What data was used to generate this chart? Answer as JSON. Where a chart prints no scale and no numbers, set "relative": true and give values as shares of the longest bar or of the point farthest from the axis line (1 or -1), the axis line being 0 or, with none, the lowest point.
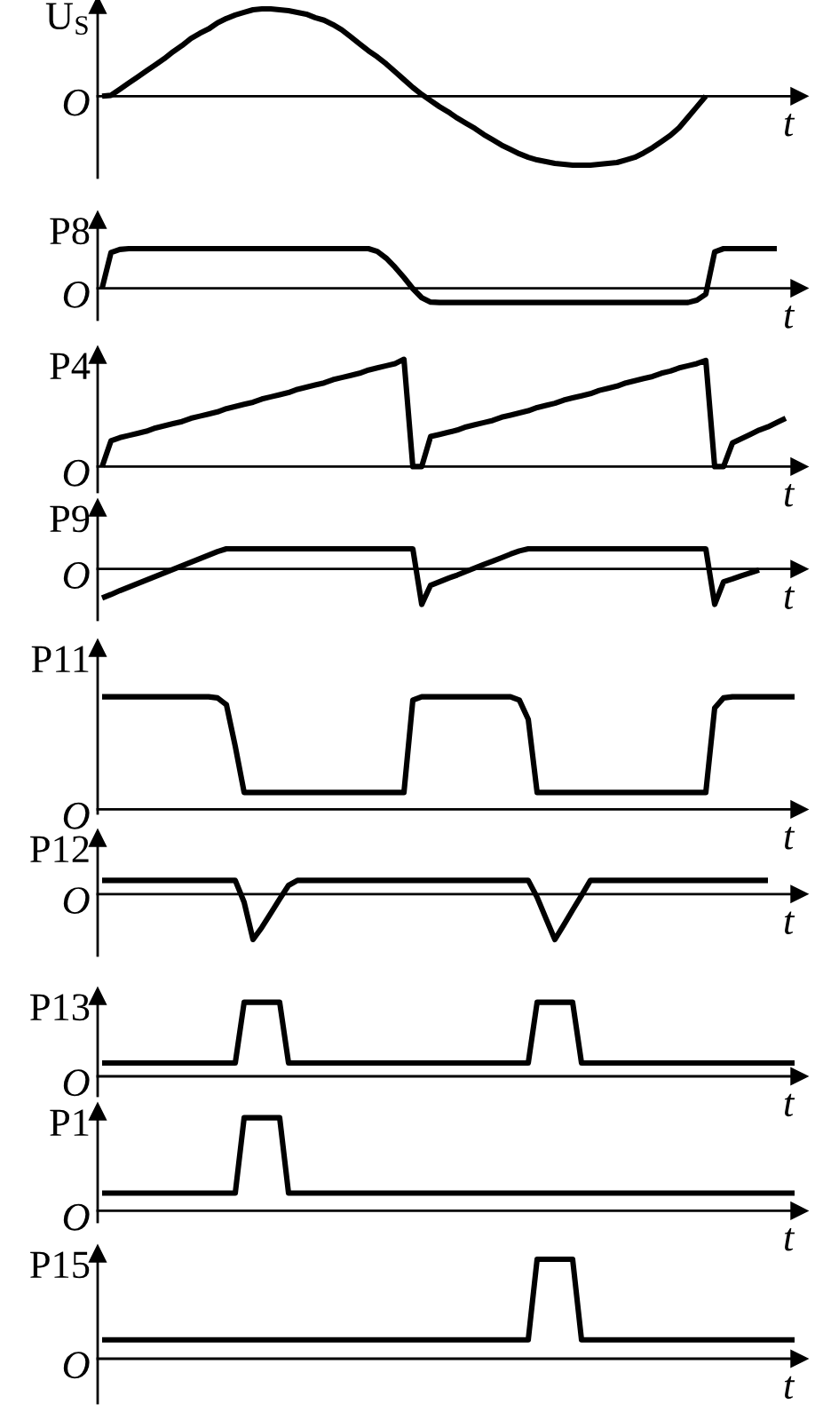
{
  "chart_data": [
    {
      "type": "line",
      "ylabel": "U$_{S}$",
      "xlabel": "t",
      "annotations": [
        "O"
      ],
      "relative": true,
      "color": "#000000",
      "categories": [
        null,
        null,
        null,
        null,
        null,
        null,
        null,
        null,
        null,
        null,
        null,
        null,
        null,
        null,
        null,
        null,
        null,
        null,
        null,
        null,
        null,
        null,
        null,
        null,
        null,
        null,
        null,
        null,
        null,
        null,
        null,
        null,
        null,
        null,
        null,
        null,
        null,
        null,
        null,
        null,
        null,
        null,
        null,
        null,
        null,
        null,
        null,
        null,
        null,
        null,
        null,
        null,
        null,
        null,
        null,
        null,
        null,
        null,
        null,
        null,
        null,
        null,
        null,
        null,
        null,
        null,
        null,
        null,
        null,
        null,
        null,
        null,
        null,
        null,
        null,
        null,
        null,
        null,
        null
      ],
      "values": [
        0,
        0.01,
        0.08,
        0.15,
        0.22,
        0.29,
        0.36,
        0.43,
        0.51,
        0.58,
        0.66,
        0.72,
        0.77,
        0.84,
        0.89,
        0.93,
        0.96,
        0.99,
        1.0,
        1.0,
        0.99,
        0.98,
        0.96,
        0.94,
        0.9,
        0.87,
        0.82,
        0.76,
        0.68,
        0.6,
        0.52,
        0.45,
        0.37,
        0.28,
        0.19,
        0.1,
        0.02,
        -0.05,
        -0.12,
        -0.18,
        -0.25,
        -0.31,
        -0.37,
        -0.44,
        -0.5,
        -0.56,
        -0.61,
        -0.66,
        -0.7,
        -0.73,
        -0.75,
        -0.77,
        -0.78,
        -0.79,
        -0.79,
        -0.79,
        -0.78,
        -0.77,
        -0.76,
        -0.73,
        -0.7,
        -0.65,
        -0.59,
        -0.52,
        -0.45,
        -0.36,
        -0.24,
        -0.12,
        0,
        null,
        null,
        null,
        null,
        null,
        null,
        null,
        null,
        null,
        null
      ]
    },
    {
      "type": "line",
      "ylabel": "P8",
      "xlabel": "t",
      "annotations": [
        "O"
      ],
      "relative": true,
      "color": "#000000",
      "categories": [
        null,
        null,
        null,
        null,
        null,
        null,
        null,
        null,
        null,
        null,
        null,
        null,
        null,
        null,
        null,
        null,
        null,
        null,
        null,
        null,
        null,
        null,
        null,
        null,
        null,
        null,
        null,
        null,
        null,
        null,
        null,
        null,
        null,
        null,
        null,
        null,
        null,
        null,
        null,
        null,
        null,
        null,
        null,
        null,
        null,
        null,
        null,
        null,
        null,
        null,
        null,
        null,
        null,
        null,
        null,
        null,
        null,
        null,
        null,
        null,
        null,
        null,
        null,
        null,
        null,
        null,
        null,
        null,
        null,
        null,
        null,
        null,
        null,
        null,
        null,
        null,
        null,
        null,
        null
      ],
      "values": [
        0,
        0.9,
        0.98,
        1.0,
        1.0,
        1.0,
        1.0,
        1.0,
        1.0,
        1.0,
        1.0,
        1.0,
        1.0,
        1.0,
        1.0,
        1.0,
        1.0,
        1.0,
        1.0,
        1.0,
        1.0,
        1.0,
        1.0,
        1.0,
        1.0,
        1.0,
        1.0,
        1.0,
        1.0,
        1.0,
        1.0,
        0.93,
        0.76,
        0.53,
        0.27,
        -0.01,
        -0.24,
        -0.35,
        -0.36,
        -0.36,
        -0.36,
        -0.36,
        -0.36,
        -0.36,
        -0.36,
        -0.36,
        -0.36,
        -0.36,
        -0.36,
        -0.36,
        -0.36,
        -0.36,
        -0.36,
        -0.36,
        -0.36,
        -0.36,
        -0.36,
        -0.36,
        -0.36,
        -0.36,
        -0.36,
        -0.36,
        -0.36,
        -0.36,
        -0.36,
        -0.36,
        -0.36,
        -0.3,
        -0.15,
        0.92,
        1.0,
        1.0,
        1.0,
        1.0,
        1.0,
        1.0,
        1.0,
        null,
        null
      ]
    },
    {
      "type": "line",
      "ylabel": "P4",
      "xlabel": "t",
      "annotations": [
        "O"
      ],
      "relative": true,
      "color": "#000000",
      "categories": [
        null,
        null,
        null,
        null,
        null,
        null,
        null,
        null,
        null,
        null,
        null,
        null,
        null,
        null,
        null,
        null,
        null,
        null,
        null,
        null,
        null,
        null,
        null,
        null,
        null,
        null,
        null,
        null,
        null,
        null,
        null,
        null,
        null,
        null,
        null,
        null,
        null,
        null,
        null,
        null,
        null,
        null,
        null,
        null,
        null,
        null,
        null,
        null,
        null,
        null,
        null,
        null,
        null,
        null,
        null,
        null,
        null,
        null,
        null,
        null,
        null,
        null,
        null,
        null,
        null,
        null,
        null,
        null,
        null,
        null,
        null,
        null,
        null,
        null,
        null,
        null,
        null,
        null,
        null
      ],
      "values": [
        0,
        0.24,
        0.27,
        0.29,
        0.31,
        0.33,
        0.36,
        0.38,
        0.4,
        0.42,
        0.45,
        0.47,
        0.49,
        0.51,
        0.54,
        0.56,
        0.58,
        0.6,
        0.63,
        0.65,
        0.67,
        0.69,
        0.72,
        0.74,
        0.76,
        0.78,
        0.81,
        0.83,
        0.85,
        0.87,
        0.9,
        0.92,
        0.94,
        0.96,
        1.0,
        0,
        0,
        0.28,
        0.3,
        0.32,
        0.34,
        0.37,
        0.39,
        0.41,
        0.43,
        0.46,
        0.48,
        0.5,
        0.52,
        0.55,
        0.57,
        0.59,
        0.62,
        0.64,
        0.66,
        0.68,
        0.71,
        0.73,
        0.75,
        0.78,
        0.8,
        0.82,
        0.84,
        0.87,
        0.89,
        0.92,
        0.94,
        0.96,
        0.99,
        0,
        0,
        0.22,
        0.26,
        0.3,
        0.34,
        0.37,
        0.41,
        0.45,
        null
      ]
    },
    {
      "type": "line",
      "ylabel": "P9",
      "xlabel": "t",
      "annotations": [
        "O"
      ],
      "relative": true,
      "color": "#000000",
      "categories": [
        null,
        null,
        null,
        null,
        null,
        null,
        null,
        null,
        null,
        null,
        null,
        null,
        null,
        null,
        null,
        null,
        null,
        null,
        null,
        null,
        null,
        null,
        null,
        null,
        null,
        null,
        null,
        null,
        null,
        null,
        null,
        null,
        null,
        null,
        null,
        null,
        null,
        null,
        null,
        null,
        null,
        null,
        null,
        null,
        null,
        null,
        null,
        null,
        null,
        null,
        null,
        null,
        null,
        null,
        null,
        null,
        null,
        null,
        null,
        null,
        null,
        null,
        null,
        null,
        null,
        null,
        null,
        null,
        null,
        null,
        null,
        null,
        null,
        null,
        null,
        null,
        null,
        null,
        null
      ],
      "values": [
        -0.82,
        -0.72,
        -0.61,
        -0.51,
        -0.41,
        -0.31,
        -0.21,
        -0.11,
        -0.01,
        0.09,
        0.19,
        0.29,
        0.39,
        0.49,
        0.57,
        0.57,
        0.57,
        0.57,
        0.57,
        0.57,
        0.57,
        0.57,
        0.57,
        0.57,
        0.57,
        0.57,
        0.57,
        0.57,
        0.57,
        0.57,
        0.57,
        0.57,
        0.57,
        0.57,
        0.57,
        0.57,
        -1.0,
        -0.46,
        -0.36,
        -0.26,
        -0.17,
        -0.07,
        0.03,
        0.13,
        0.22,
        0.32,
        0.42,
        0.51,
        0.57,
        0.57,
        0.57,
        0.57,
        0.57,
        0.57,
        0.57,
        0.57,
        0.57,
        0.57,
        0.57,
        0.57,
        0.57,
        0.57,
        0.57,
        0.57,
        0.57,
        0.57,
        0.57,
        0.57,
        0.57,
        -1.0,
        -0.36,
        -0.28,
        -0.19,
        -0.11,
        -0.03,
        null,
        null,
        null,
        null
      ]
    },
    {
      "type": "line",
      "ylabel": "P11",
      "xlabel": "t",
      "annotations": [
        "O"
      ],
      "relative": true,
      "color": "#000000",
      "categories": [
        null,
        null,
        null,
        null,
        null,
        null,
        null,
        null,
        null,
        null,
        null,
        null,
        null,
        null,
        null,
        null,
        null,
        null,
        null,
        null,
        null,
        null,
        null,
        null,
        null,
        null,
        null,
        null,
        null,
        null,
        null,
        null,
        null,
        null,
        null,
        null,
        null,
        null,
        null,
        null,
        null,
        null,
        null,
        null,
        null,
        null,
        null,
        null,
        null,
        null,
        null,
        null,
        null,
        null,
        null,
        null,
        null,
        null,
        null,
        null,
        null,
        null,
        null,
        null,
        null,
        null,
        null,
        null,
        null,
        null,
        null,
        null,
        null,
        null,
        null,
        null,
        null,
        null,
        null
      ],
      "values": [
        1.0,
        1.0,
        1.0,
        1.0,
        1.0,
        1.0,
        1.0,
        1.0,
        1.0,
        1.0,
        1.0,
        1.0,
        1.0,
        0.99,
        0.93,
        0.56,
        0.15,
        0.15,
        0.15,
        0.15,
        0.15,
        0.15,
        0.15,
        0.15,
        0.15,
        0.15,
        0.15,
        0.15,
        0.15,
        0.15,
        0.15,
        0.15,
        0.15,
        0.15,
        0.15,
        0.97,
        1.0,
        1.0,
        1.0,
        1.0,
        1.0,
        1.0,
        1.0,
        1.0,
        1.0,
        1.0,
        1.0,
        0.97,
        0.8,
        0.15,
        0.15,
        0.15,
        0.15,
        0.15,
        0.15,
        0.15,
        0.15,
        0.15,
        0.15,
        0.15,
        0.15,
        0.15,
        0.15,
        0.15,
        0.15,
        0.15,
        0.15,
        0.15,
        0.15,
        0.9,
        0.99,
        1.0,
        1.0,
        1.0,
        1.0,
        1.0,
        1.0,
        1.0,
        1.0
      ]
    },
    {
      "type": "line",
      "ylabel": "P12",
      "xlabel": "t",
      "annotations": [
        "O"
      ],
      "relative": true,
      "color": "#000000",
      "categories": [
        null,
        null,
        null,
        null,
        null,
        null,
        null,
        null,
        null,
        null,
        null,
        null,
        null,
        null,
        null,
        null,
        null,
        null,
        null,
        null,
        null,
        null,
        null,
        null,
        null,
        null,
        null,
        null,
        null,
        null,
        null,
        null,
        null,
        null,
        null,
        null,
        null,
        null,
        null,
        null,
        null,
        null,
        null,
        null,
        null,
        null,
        null,
        null,
        null,
        null,
        null,
        null,
        null,
        null,
        null,
        null,
        null,
        null,
        null,
        null,
        null,
        null,
        null,
        null,
        null,
        null,
        null,
        null,
        null,
        null,
        null,
        null,
        null,
        null,
        null,
        null,
        null,
        null,
        null
      ],
      "values": [
        0.3,
        0.3,
        0.3,
        0.3,
        0.3,
        0.3,
        0.3,
        0.3,
        0.3,
        0.3,
        0.3,
        0.3,
        0.3,
        0.3,
        0.3,
        0.3,
        -0.18,
        -1.0,
        -0.73,
        -0.42,
        -0.11,
        0.19,
        0.3,
        0.3,
        0.3,
        0.3,
        0.3,
        0.3,
        0.3,
        0.3,
        0.3,
        0.3,
        0.3,
        0.3,
        0.3,
        0.3,
        0.3,
        0.3,
        0.3,
        0.3,
        0.3,
        0.3,
        0.3,
        0.3,
        0.3,
        0.3,
        0.3,
        0.3,
        0.3,
        -0.07,
        -0.54,
        -1.0,
        -0.68,
        -0.35,
        -0.03,
        0.3,
        0.3,
        0.3,
        0.3,
        0.3,
        0.3,
        0.3,
        0.3,
        0.3,
        0.3,
        0.3,
        0.3,
        0.3,
        0.3,
        0.3,
        0.3,
        0.3,
        0.3,
        0.3,
        0.3,
        0.3,
        null,
        null,
        null
      ]
    },
    {
      "type": "line",
      "ylabel": "P13",
      "xlabel": "t",
      "annotations": [
        "O"
      ],
      "relative": true,
      "color": "#000000",
      "categories": [
        null,
        null,
        null,
        null,
        null,
        null,
        null,
        null,
        null,
        null,
        null,
        null,
        null,
        null,
        null,
        null,
        null,
        null,
        null,
        null,
        null,
        null,
        null,
        null,
        null,
        null,
        null,
        null,
        null,
        null,
        null,
        null,
        null,
        null,
        null,
        null,
        null,
        null,
        null,
        null,
        null,
        null,
        null,
        null,
        null,
        null,
        null,
        null,
        null,
        null,
        null,
        null,
        null,
        null,
        null,
        null,
        null,
        null,
        null,
        null,
        null,
        null,
        null,
        null,
        null,
        null,
        null,
        null,
        null,
        null,
        null,
        null,
        null,
        null,
        null,
        null,
        null,
        null,
        null
      ],
      "values": [
        0.18,
        0.18,
        0.18,
        0.18,
        0.18,
        0.18,
        0.18,
        0.18,
        0.18,
        0.18,
        0.18,
        0.18,
        0.18,
        0.18,
        0.18,
        0.18,
        1.0,
        1.0,
        1.0,
        1.0,
        1.0,
        0.18,
        0.18,
        0.18,
        0.18,
        0.18,
        0.18,
        0.18,
        0.18,
        0.18,
        0.18,
        0.18,
        0.18,
        0.18,
        0.18,
        0.18,
        0.18,
        0.18,
        0.18,
        0.18,
        0.18,
        0.18,
        0.18,
        0.18,
        0.18,
        0.18,
        0.18,
        0.18,
        0.18,
        1.0,
        1.0,
        1.0,
        1.0,
        1.0,
        0.18,
        0.18,
        0.18,
        0.18,
        0.18,
        0.18,
        0.18,
        0.18,
        0.18,
        0.18,
        0.18,
        0.18,
        0.18,
        0.18,
        0.18,
        0.18,
        0.18,
        0.18,
        0.18,
        0.18,
        0.18,
        0.18,
        0.18,
        0.18,
        0.18
      ]
    },
    {
      "type": "line",
      "ylabel": "P1",
      "xlabel": "t",
      "annotations": [
        "O"
      ],
      "relative": true,
      "color": "#000000",
      "categories": [
        null,
        null,
        null,
        null,
        null,
        null,
        null,
        null,
        null,
        null,
        null,
        null,
        null,
        null,
        null,
        null,
        null,
        null,
        null,
        null,
        null,
        null,
        null,
        null,
        null,
        null,
        null,
        null,
        null,
        null,
        null,
        null,
        null,
        null,
        null,
        null,
        null,
        null,
        null,
        null,
        null,
        null,
        null,
        null,
        null,
        null,
        null,
        null,
        null,
        null,
        null,
        null,
        null,
        null,
        null,
        null,
        null,
        null,
        null,
        null,
        null,
        null,
        null,
        null,
        null,
        null,
        null,
        null,
        null,
        null,
        null,
        null,
        null,
        null,
        null,
        null,
        null,
        null,
        null
      ],
      "values": [
        0.19,
        0.19,
        0.19,
        0.19,
        0.19,
        0.19,
        0.19,
        0.19,
        0.19,
        0.19,
        0.19,
        0.19,
        0.19,
        0.19,
        0.19,
        0.19,
        1.0,
        1.0,
        1.0,
        1.0,
        1.0,
        0.19,
        0.19,
        0.19,
        0.19,
        0.19,
        0.19,
        0.19,
        0.19,
        0.19,
        0.19,
        0.19,
        0.19,
        0.19,
        0.19,
        0.19,
        0.19,
        0.19,
        0.19,
        0.19,
        0.19,
        0.19,
        0.19,
        0.19,
        0.19,
        0.19,
        0.19,
        0.19,
        0.19,
        0.19,
        0.19,
        0.19,
        0.19,
        0.19,
        0.19,
        0.19,
        0.19,
        0.19,
        0.19,
        0.19,
        0.19,
        0.19,
        0.19,
        0.19,
        0.19,
        0.19,
        0.19,
        0.19,
        0.19,
        0.19,
        0.19,
        0.19,
        0.19,
        0.19,
        0.19,
        0.19,
        0.19,
        0.19,
        0.19
      ]
    },
    {
      "type": "line",
      "ylabel": "P15",
      "xlabel": "t",
      "annotations": [
        "O"
      ],
      "relative": true,
      "color": "#000000",
      "categories": [
        null,
        null,
        null,
        null,
        null,
        null,
        null,
        null,
        null,
        null,
        null,
        null,
        null,
        null,
        null,
        null,
        null,
        null,
        null,
        null,
        null,
        null,
        null,
        null,
        null,
        null,
        null,
        null,
        null,
        null,
        null,
        null,
        null,
        null,
        null,
        null,
        null,
        null,
        null,
        null,
        null,
        null,
        null,
        null,
        null,
        null,
        null,
        null,
        null,
        null,
        null,
        null,
        null,
        null,
        null,
        null,
        null,
        null,
        null,
        null,
        null,
        null,
        null,
        null,
        null,
        null,
        null,
        null,
        null,
        null,
        null,
        null,
        null,
        null,
        null,
        null,
        null,
        null,
        null
      ],
      "values": [
        0.19,
        0.19,
        0.19,
        0.19,
        0.19,
        0.19,
        0.19,
        0.19,
        0.19,
        0.19,
        0.19,
        0.19,
        0.19,
        0.19,
        0.19,
        0.19,
        0.19,
        0.19,
        0.19,
        0.19,
        0.19,
        0.19,
        0.19,
        0.19,
        0.19,
        0.19,
        0.19,
        0.19,
        0.19,
        0.19,
        0.19,
        0.19,
        0.19,
        0.19,
        0.19,
        0.19,
        0.19,
        0.19,
        0.19,
        0.19,
        0.19,
        0.19,
        0.19,
        0.19,
        0.19,
        0.19,
        0.19,
        0.19,
        0.19,
        1.0,
        1.0,
        1.0,
        1.0,
        1.0,
        0.19,
        0.19,
        0.19,
        0.19,
        0.19,
        0.19,
        0.19,
        0.19,
        0.19,
        0.19,
        0.19,
        0.19,
        0.19,
        0.19,
        0.19,
        0.19,
        0.19,
        0.19,
        0.19,
        0.19,
        0.19,
        0.19,
        0.19,
        0.19,
        0.19
      ]
    }
  ]
}
